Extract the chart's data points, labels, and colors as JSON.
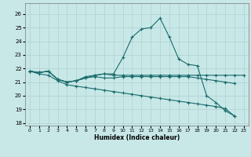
{
  "xlabel": "Humidex (Indice chaleur)",
  "background_color": "#c8e8e8",
  "grid_color": "#b0cfcf",
  "line_color": "#1a6b6b",
  "xlim": [
    -0.5,
    23.5
  ],
  "ylim": [
    17.8,
    26.8
  ],
  "yticks": [
    18,
    19,
    20,
    21,
    22,
    23,
    24,
    25,
    26
  ],
  "xticks": [
    0,
    1,
    2,
    3,
    4,
    5,
    6,
    7,
    8,
    9,
    10,
    11,
    12,
    13,
    14,
    15,
    16,
    17,
    18,
    19,
    20,
    21,
    22,
    23
  ],
  "series": [
    {
      "x": [
        0,
        1,
        2,
        3,
        4,
        5,
        6,
        7,
        8,
        9,
        10,
        11,
        12,
        13,
        14,
        15,
        16,
        17,
        18,
        19,
        20,
        21,
        22,
        23
      ],
      "y": [
        21.8,
        21.7,
        21.8,
        21.2,
        21.0,
        21.1,
        21.3,
        21.5,
        21.6,
        21.5,
        21.5,
        21.5,
        21.5,
        21.5,
        21.5,
        21.5,
        21.5,
        21.5,
        21.5,
        21.5,
        21.5,
        21.5,
        21.5,
        21.5
      ]
    },
    {
      "x": [
        0,
        1,
        2,
        3,
        4,
        5,
        6,
        7,
        8,
        9,
        10,
        11,
        12,
        13,
        14,
        15,
        16,
        17,
        18,
        19,
        20,
        21,
        22
      ],
      "y": [
        21.8,
        21.7,
        21.8,
        21.2,
        21.0,
        21.1,
        21.4,
        21.5,
        21.6,
        21.6,
        22.8,
        24.3,
        24.9,
        25.0,
        25.7,
        24.3,
        22.7,
        22.3,
        22.2,
        20.0,
        19.5,
        18.9,
        18.5
      ]
    },
    {
      "x": [
        0,
        1,
        2,
        3,
        4,
        5,
        6,
        7,
        8,
        9,
        10,
        11,
        12,
        13,
        14,
        15,
        16,
        17,
        18,
        19,
        20,
        21,
        22
      ],
      "y": [
        21.8,
        21.7,
        21.8,
        21.2,
        21.0,
        21.1,
        21.3,
        21.4,
        21.3,
        21.3,
        21.4,
        21.4,
        21.4,
        21.4,
        21.4,
        21.4,
        21.4,
        21.4,
        21.3,
        21.2,
        21.1,
        21.0,
        20.9
      ]
    },
    {
      "x": [
        0,
        1,
        2,
        3,
        4,
        5,
        6,
        7,
        8,
        9,
        10,
        11,
        12,
        13,
        14,
        15,
        16,
        17,
        18,
        19,
        20,
        21,
        22
      ],
      "y": [
        21.8,
        21.6,
        21.5,
        21.1,
        20.8,
        20.7,
        20.6,
        20.5,
        20.4,
        20.3,
        20.2,
        20.1,
        20.0,
        19.9,
        19.8,
        19.7,
        19.6,
        19.5,
        19.4,
        19.3,
        19.2,
        19.05,
        18.5
      ]
    }
  ]
}
